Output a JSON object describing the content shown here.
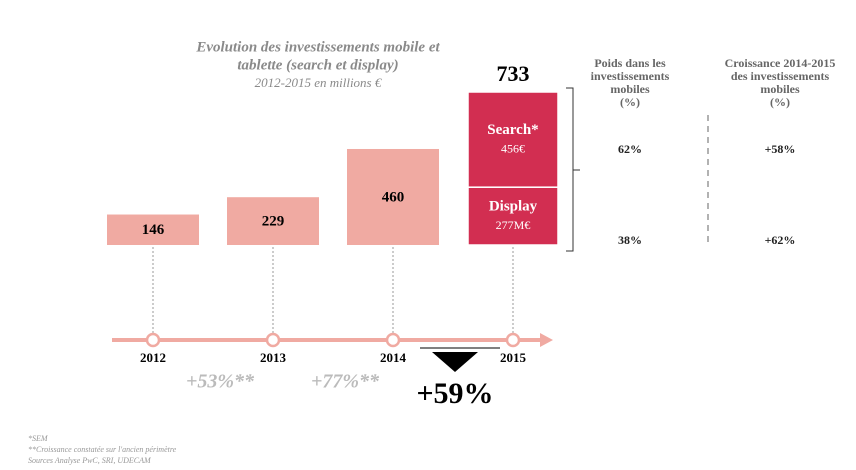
{
  "chart_data": {
    "type": "bar",
    "title": [
      "Evolution des investissements mobile et",
      "tablette (search et display)"
    ],
    "subtitle": "2012-2015 en millions €",
    "categories": [
      "2012",
      "2013",
      "2014",
      "2015"
    ],
    "values": [
      146,
      229,
      460,
      733
    ],
    "color": "#f0aaa2",
    "stack": [
      {
        "name": "Search*",
        "value": 456,
        "value_label": "456€",
        "color": "#d22e51"
      },
      {
        "name": "Display",
        "value": 277,
        "value_label": "277M€",
        "color": "#d22e51"
      }
    ],
    "growth_labels": [
      "+53%**",
      "+77%**",
      "+59%"
    ],
    "table": {
      "headers": [
        [
          "Poids dans les",
          "investissements",
          "mobiles",
          "(%)"
        ],
        [
          "Croissance 2014-2015",
          "des investissements",
          "mobiles",
          "(%)"
        ]
      ],
      "rows": [
        [
          "62%",
          "+58%"
        ],
        [
          "38%",
          "+62%"
        ]
      ]
    },
    "footnotes": [
      "*SEM",
      "**Croissance constatée sur l'ancien périmètre",
      "Sources Analyse PwC, SRI, UDECAM"
    ]
  }
}
